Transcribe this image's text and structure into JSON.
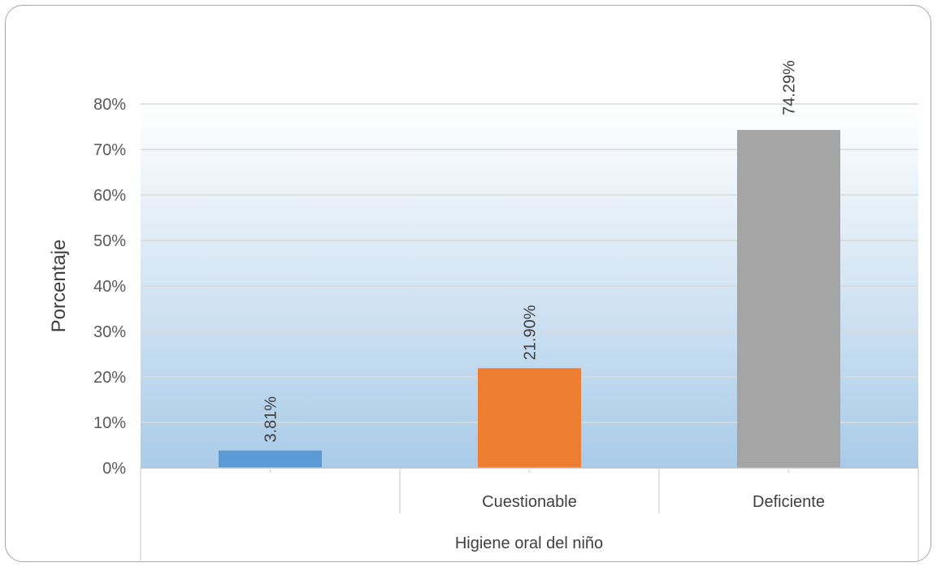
{
  "chart_data": {
    "type": "bar",
    "categories": [
      "",
      "Cuestionable",
      "Deficiente"
    ],
    "values": [
      3.81,
      21.9,
      74.29
    ],
    "data_labels": [
      "3.81%",
      "21.90%",
      "74.29%"
    ],
    "colors": [
      "#5b9bd5",
      "#ed7d31",
      "#a5a5a5"
    ],
    "ylabel": "Porcentaje",
    "xlabel": "Higiene oral del niño",
    "ylim": [
      0,
      80
    ],
    "yticks": [
      "0%",
      "10%",
      "20%",
      "30%",
      "40%",
      "50%",
      "60%",
      "70%",
      "80%"
    ],
    "grid": true,
    "background_gradient": [
      "#ffffff",
      "#a9cbe8"
    ]
  }
}
